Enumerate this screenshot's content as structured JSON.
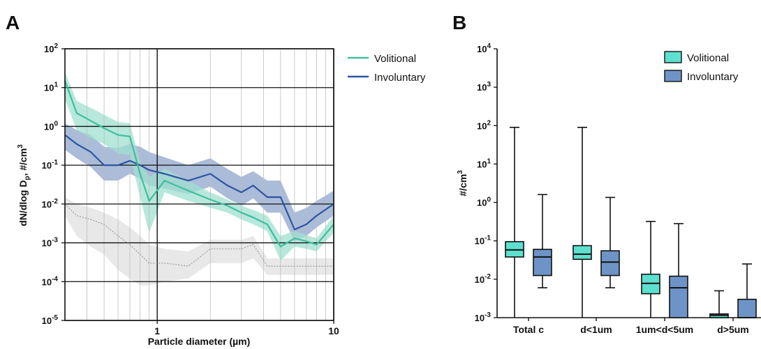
{
  "colors": {
    "volitional": "#3fbf9f",
    "volitional_fill": "#9fe0cf",
    "involuntary": "#2c55a0",
    "involuntary_fill": "#8fa6cc",
    "background_band": "#e6e6e6",
    "background_line": "#9a9a9a",
    "box_volitional": "#5ee0cf",
    "box_involuntary": "#6e94c7"
  },
  "chart_data": [
    {
      "panel_label": "A",
      "type": "line",
      "xlabel": "Particle diameter (µm)",
      "ylabel": "dN/dlog D",
      "ylabel_sub": "p",
      "ylabel_unit": ", #/cm",
      "ylabel_sup": "3",
      "x_scale": "log",
      "y_scale": "log",
      "xlim": [
        0.3,
        10
      ],
      "ylim": [
        1e-05,
        100
      ],
      "x_ticks": [
        {
          "value": 1,
          "label": "1"
        },
        {
          "value": 10,
          "label": "10"
        }
      ],
      "y_ticks": [
        {
          "value": 100,
          "base": "10",
          "exp": "2"
        },
        {
          "value": 10,
          "base": "10",
          "exp": "1"
        },
        {
          "value": 1,
          "base": "10",
          "exp": "0"
        },
        {
          "value": 0.1,
          "base": "10",
          "exp": "-1"
        },
        {
          "value": 0.01,
          "base": "10",
          "exp": "-2"
        },
        {
          "value": 0.001,
          "base": "10",
          "exp": "-3"
        },
        {
          "value": 0.0001,
          "base": "10",
          "exp": "-4"
        },
        {
          "value": 1e-05,
          "base": "10",
          "exp": "-5"
        }
      ],
      "grid": true,
      "legend_position": "top-right-outside",
      "series": [
        {
          "name": "Volitional",
          "x": [
            0.3,
            0.35,
            0.42,
            0.5,
            0.6,
            0.7,
            0.8,
            0.9,
            1.1,
            1.5,
            2.0,
            2.5,
            3.0,
            3.5,
            4.2,
            5.0,
            6.0,
            7.0,
            8.0,
            10.0
          ],
          "y": [
            15,
            2.2,
            1.4,
            0.9,
            0.6,
            0.55,
            0.06,
            0.012,
            0.04,
            0.022,
            0.013,
            0.009,
            0.006,
            0.0045,
            0.003,
            0.0008,
            0.0013,
            0.0011,
            0.0009,
            0.003
          ],
          "lower": [
            5,
            0.8,
            0.5,
            0.35,
            0.2,
            0.18,
            0.015,
            0.0018,
            0.02,
            0.012,
            0.008,
            0.006,
            0.004,
            0.003,
            0.002,
            0.00035,
            0.0008,
            0.0007,
            0.0006,
            0.0018
          ],
          "upper": [
            25,
            4.5,
            3.0,
            2.0,
            1.3,
            1.2,
            0.12,
            0.05,
            0.08,
            0.04,
            0.02,
            0.013,
            0.009,
            0.007,
            0.005,
            0.0015,
            0.002,
            0.0016,
            0.0013,
            0.005
          ]
        },
        {
          "name": "Involuntary",
          "x": [
            0.3,
            0.35,
            0.42,
            0.5,
            0.6,
            0.7,
            0.8,
            0.9,
            1.1,
            1.5,
            2.0,
            2.5,
            3.0,
            3.5,
            4.2,
            5.0,
            6.0,
            7.0,
            8.0,
            10.0
          ],
          "y": [
            0.6,
            0.35,
            0.22,
            0.1,
            0.1,
            0.13,
            0.1,
            0.075,
            0.06,
            0.04,
            0.06,
            0.03,
            0.02,
            0.03,
            0.015,
            0.015,
            0.0022,
            0.003,
            0.005,
            0.01
          ],
          "lower": [
            0.25,
            0.15,
            0.09,
            0.04,
            0.04,
            0.06,
            0.045,
            0.03,
            0.025,
            0.018,
            0.028,
            0.014,
            0.009,
            0.014,
            0.006,
            0.006,
            0.0011,
            0.0015,
            0.0025,
            0.005
          ],
          "upper": [
            1.2,
            0.8,
            0.6,
            0.3,
            0.28,
            0.35,
            0.3,
            0.22,
            0.16,
            0.1,
            0.15,
            0.08,
            0.05,
            0.07,
            0.04,
            0.04,
            0.006,
            0.008,
            0.012,
            0.022
          ]
        },
        {
          "x": [
            0.3,
            0.35,
            0.42,
            0.5,
            0.6,
            0.7,
            0.8,
            0.9,
            1.1,
            1.5,
            2.0,
            2.5,
            3.0,
            3.5,
            4.2,
            5.0,
            6.0,
            7.0,
            8.0,
            10.0
          ],
          "y": [
            0.01,
            0.005,
            0.004,
            0.003,
            0.0015,
            0.0009,
            0.0005,
            0.0003,
            0.0003,
            0.00025,
            0.0007,
            0.0007,
            0.0007,
            0.0009,
            0.00025,
            0.00025,
            0.00025,
            0.00025,
            0.00025,
            0.00025
          ],
          "lower": [
            0.005,
            0.0015,
            0.0008,
            0.0005,
            0.0002,
            0.00012,
            8e-05,
            8e-05,
            0.0001,
            0.00012,
            0.0003,
            0.0003,
            0.0003,
            0.0004,
            0.00015,
            0.00015,
            0.00015,
            0.00015,
            0.00015,
            0.00015
          ],
          "upper": [
            0.015,
            0.01,
            0.008,
            0.006,
            0.004,
            0.0025,
            0.0015,
            0.0009,
            0.0007,
            0.0006,
            0.0012,
            0.0012,
            0.0012,
            0.0015,
            0.0004,
            0.0004,
            0.0004,
            0.0004,
            0.0004,
            0.0004
          ]
        }
      ]
    },
    {
      "panel_label": "B",
      "type": "box",
      "ylabel": "#/cm",
      "ylabel_sup": "3",
      "y_scale": "log",
      "ylim": [
        0.001,
        10000
      ],
      "y_ticks": [
        {
          "value": 10000,
          "base": "10",
          "exp": "4"
        },
        {
          "value": 1000,
          "base": "10",
          "exp": "3"
        },
        {
          "value": 100,
          "base": "10",
          "exp": "2"
        },
        {
          "value": 10,
          "base": "10",
          "exp": "1"
        },
        {
          "value": 1,
          "base": "10",
          "exp": "0"
        },
        {
          "value": 0.1,
          "base": "10",
          "exp": "-1"
        },
        {
          "value": 0.01,
          "base": "10",
          "exp": "-2"
        },
        {
          "value": 0.001,
          "base": "10",
          "exp": "-3"
        }
      ],
      "categories": [
        "Total c",
        "d<1um",
        "1um<d<5um",
        "d>5um"
      ],
      "legend_position": "top-right",
      "series": [
        {
          "name": "Volitional",
          "boxes": [
            {
              "min": 0.001,
              "q1": 0.038,
              "median": 0.058,
              "q3": 0.095,
              "max": 90
            },
            {
              "min": 0.001,
              "q1": 0.033,
              "median": 0.045,
              "q3": 0.075,
              "max": 90
            },
            {
              "min": 0.001,
              "q1": 0.0042,
              "median": 0.0078,
              "q3": 0.0135,
              "max": 0.32
            },
            {
              "min": 0.001,
              "q1": 0.001,
              "median": 0.00115,
              "q3": 0.00125,
              "max": 0.005
            }
          ]
        },
        {
          "name": "Involuntary",
          "boxes": [
            {
              "min": 0.006,
              "q1": 0.0125,
              "median": 0.038,
              "q3": 0.06,
              "max": 1.6
            },
            {
              "min": 0.006,
              "q1": 0.0125,
              "median": 0.028,
              "q3": 0.055,
              "max": 1.35
            },
            {
              "min": 0.001,
              "q1": 0.001,
              "median": 0.006,
              "q3": 0.012,
              "max": 0.28
            },
            {
              "min": 0.001,
              "q1": 0.001,
              "median": 0.001,
              "q3": 0.003,
              "max": 0.025
            }
          ]
        }
      ]
    }
  ]
}
